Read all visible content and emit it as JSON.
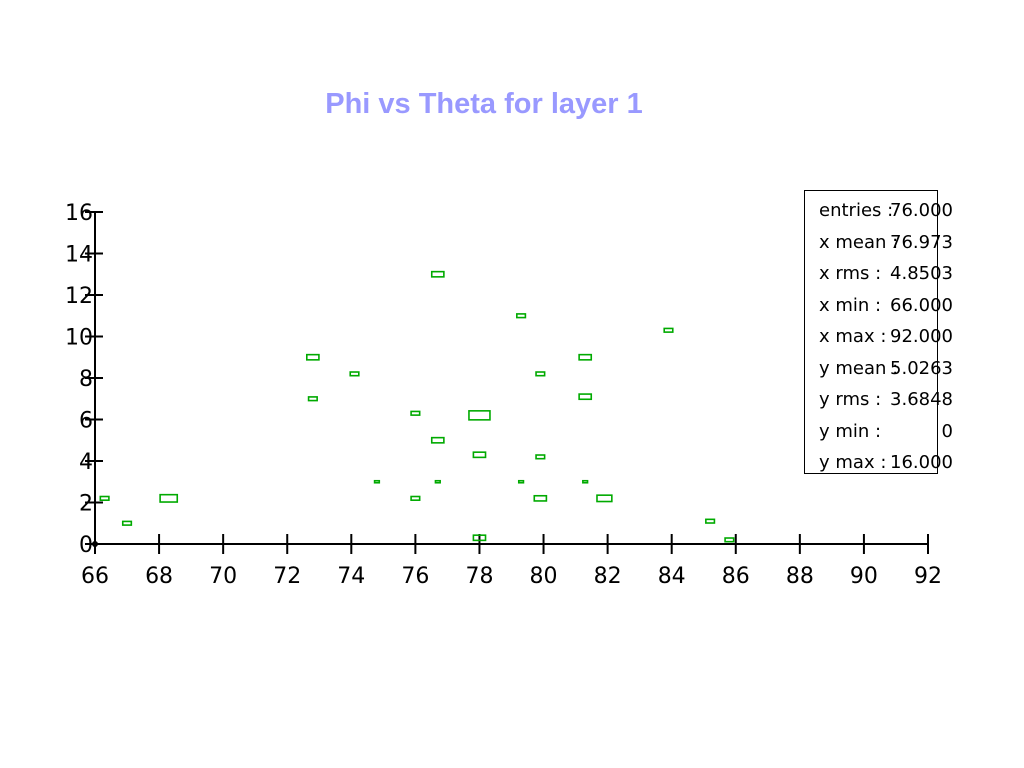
{
  "colors": {
    "title": "#9999ff",
    "marks": "#00aa00",
    "axis": "#000000"
  },
  "chart_data": {
    "type": "heatmap",
    "title": "Phi vs Theta for layer 1",
    "xlabel": "",
    "ylabel": "",
    "xlim": [
      66,
      92
    ],
    "ylim": [
      0,
      16
    ],
    "x_ticks": [
      "66",
      "68",
      "70",
      "72",
      "74",
      "76",
      "78",
      "80",
      "82",
      "84",
      "86",
      "88",
      "90",
      "92"
    ],
    "y_ticks": [
      "0",
      "2",
      "4",
      "6",
      "8",
      "10",
      "12",
      "14",
      "16"
    ],
    "bins": [
      {
        "x": 66.3,
        "y": 2.2,
        "count": 1
      },
      {
        "x": 67.0,
        "y": 1.0,
        "count": 1
      },
      {
        "x": 68.3,
        "y": 2.2,
        "count": 4
      },
      {
        "x": 72.8,
        "y": 9.0,
        "count": 2
      },
      {
        "x": 72.8,
        "y": 7.0,
        "count": 1
      },
      {
        "x": 74.1,
        "y": 8.2,
        "count": 1
      },
      {
        "x": 74.8,
        "y": 3.0,
        "count": 0.3
      },
      {
        "x": 76.0,
        "y": 6.3,
        "count": 1
      },
      {
        "x": 76.0,
        "y": 2.2,
        "count": 1
      },
      {
        "x": 76.7,
        "y": 13.0,
        "count": 2
      },
      {
        "x": 76.7,
        "y": 5.0,
        "count": 2
      },
      {
        "x": 76.7,
        "y": 3.0,
        "count": 0.3
      },
      {
        "x": 78.0,
        "y": 6.2,
        "count": 6
      },
      {
        "x": 78.0,
        "y": 4.3,
        "count": 2
      },
      {
        "x": 78.0,
        "y": 0.3,
        "count": 2
      },
      {
        "x": 79.3,
        "y": 11.0,
        "count": 1
      },
      {
        "x": 79.3,
        "y": 3.0,
        "count": 0.3
      },
      {
        "x": 79.9,
        "y": 8.2,
        "count": 1
      },
      {
        "x": 79.9,
        "y": 4.2,
        "count": 1
      },
      {
        "x": 79.9,
        "y": 2.2,
        "count": 2
      },
      {
        "x": 81.3,
        "y": 9.0,
        "count": 2
      },
      {
        "x": 81.3,
        "y": 7.1,
        "count": 2
      },
      {
        "x": 81.3,
        "y": 3.0,
        "count": 0.3
      },
      {
        "x": 81.9,
        "y": 2.2,
        "count": 3
      },
      {
        "x": 83.9,
        "y": 10.3,
        "count": 1
      },
      {
        "x": 85.2,
        "y": 1.1,
        "count": 1
      },
      {
        "x": 85.8,
        "y": 0.2,
        "count": 1
      }
    ]
  },
  "stats": {
    "entries_label": "entries :",
    "entries_value": "76.000",
    "xmean_label": "x mean :",
    "xmean_value": "76.973",
    "xrms_label": "x rms :",
    "xrms_value": "4.8503",
    "xmin_label": "x min :",
    "xmin_value": "66.000",
    "xmax_label": "x max :",
    "xmax_value": "92.000",
    "ymean_label": "y mean :",
    "ymean_value": "5.0263",
    "yrms_label": "y rms :",
    "yrms_value": "3.6848",
    "ymin_label": "y min :",
    "ymin_value": "0",
    "ymax_label": "y max :",
    "ymax_value": "16.000"
  }
}
